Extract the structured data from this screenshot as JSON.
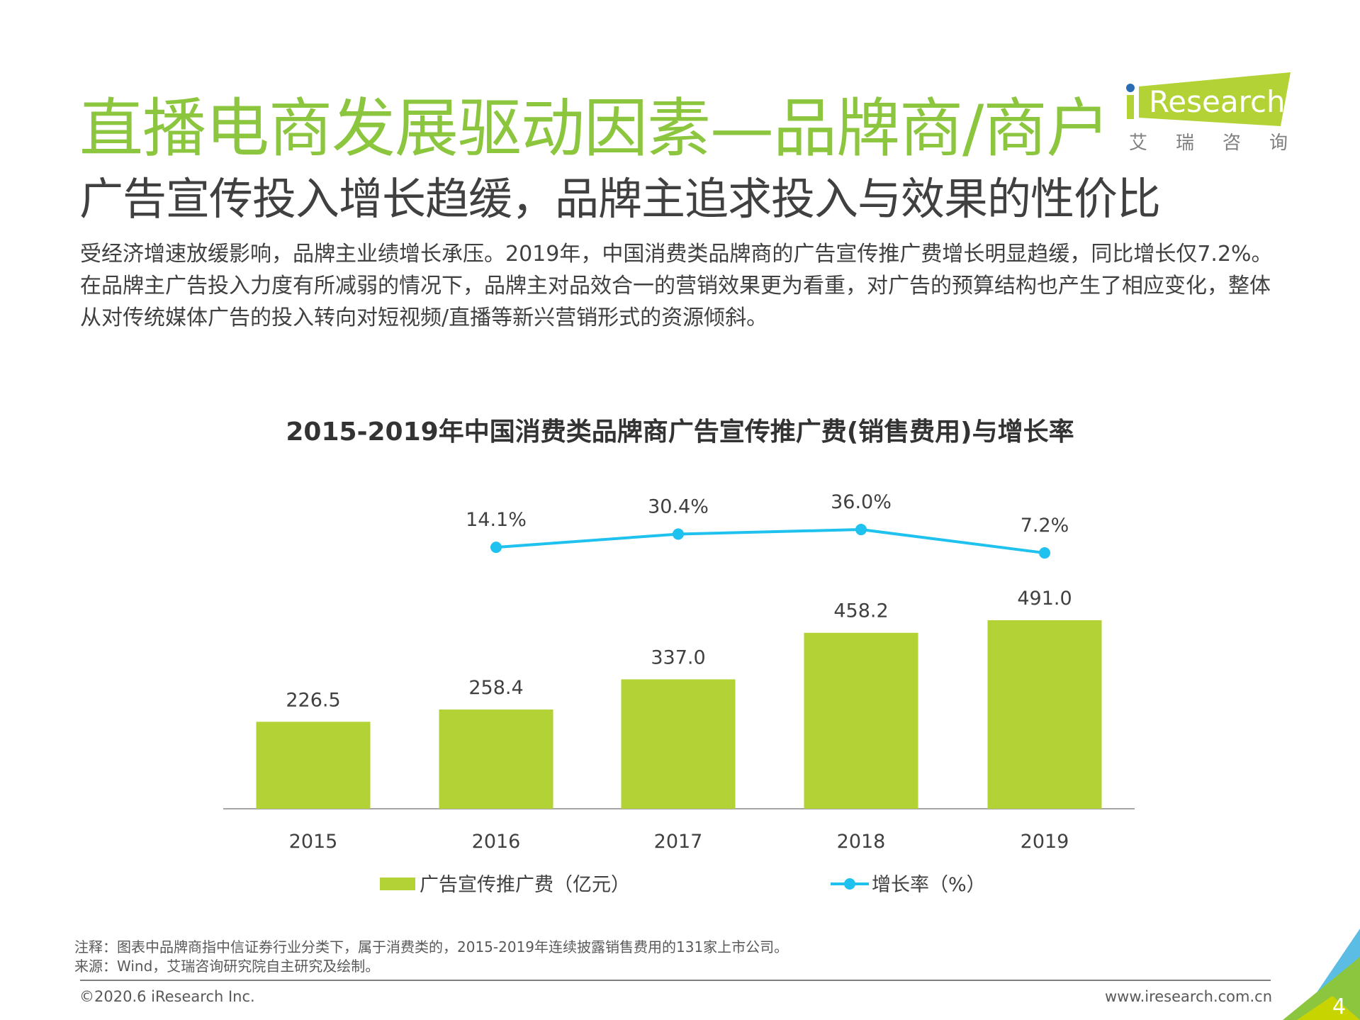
{
  "header": {
    "title": "直播电商发展驱动因素—品牌商/商户",
    "subtitle": "广告宣传投入增长趋缓，品牌主追求投入与效果的性价比",
    "logo_text": "iResearch",
    "logo_cn": "艾 瑞 咨 询"
  },
  "body": {
    "paragraph": "受经济增速放缓影响，品牌主业绩增长承压。2019年，中国消费类品牌商的广告宣传推广费增长明显趋缓，同比增长仅7.2%。在品牌主广告投入力度有所减弱的情况下，品牌主对品效合一的营销效果更为看重，对广告的预算结构也产生了相应变化，整体从对传统媒体广告的投入转向对短视频/直播等新兴营销形式的资源倾斜。"
  },
  "chart_data": {
    "type": "bar+line",
    "title": "2015-2019年中国消费类品牌商广告宣传推广费(销售费用)与增长率",
    "categories": [
      "2015",
      "2016",
      "2017",
      "2018",
      "2019"
    ],
    "series": [
      {
        "name": "广告宣传推广费（亿元）",
        "type": "bar",
        "values": [
          226.5,
          258.4,
          337.0,
          458.2,
          491.0
        ],
        "labels": [
          "226.5",
          "258.4",
          "337.0",
          "458.2",
          "491.0"
        ],
        "color": "#b2d235"
      },
      {
        "name": "增长率（%）",
        "type": "line",
        "values": [
          null,
          14.1,
          30.4,
          36.0,
          7.2
        ],
        "labels": [
          "",
          "14.1%",
          "30.4%",
          "36.0%",
          "7.2%"
        ],
        "color": "#1fc1ef"
      }
    ],
    "legend": "bottom"
  },
  "notes": {
    "note": "注释：图表中品牌商指中信证券行业分类下，属于消费类的，2015-2019年连续披露销售费用的131家上市公司。",
    "source": "来源：Wind，艾瑞咨询研究院自主研究及绘制。"
  },
  "footer": {
    "copyright": "©2020.6 iResearch Inc.",
    "website": "www.iresearch.com.cn",
    "page": "4"
  }
}
